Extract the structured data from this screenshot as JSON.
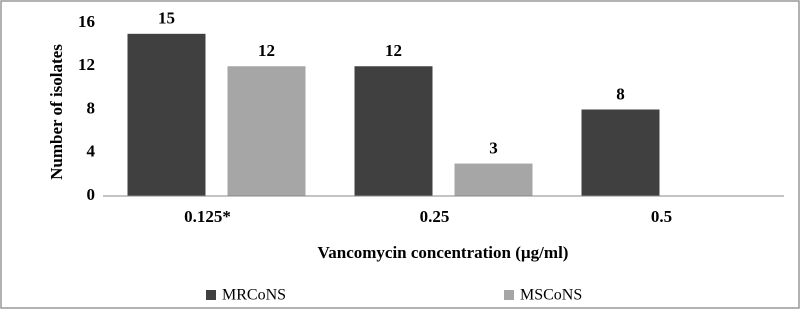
{
  "chart_data": {
    "type": "bar",
    "xlabel": "Vancomycin concentration (µg/ml)",
    "ylabel": "Number of isolates",
    "categories": [
      "0.125*",
      "0.25",
      "0.5"
    ],
    "series": [
      {
        "name": "MRCoNS",
        "color": "#404040",
        "values": [
          15,
          12,
          8
        ]
      },
      {
        "name": "MSCoNS",
        "color": "#a6a6a6",
        "values": [
          12,
          3,
          null
        ]
      }
    ],
    "ylim": [
      0,
      16
    ],
    "yticks": [
      0,
      4,
      8,
      12,
      16
    ],
    "grid": false,
    "legend": "bottom"
  }
}
